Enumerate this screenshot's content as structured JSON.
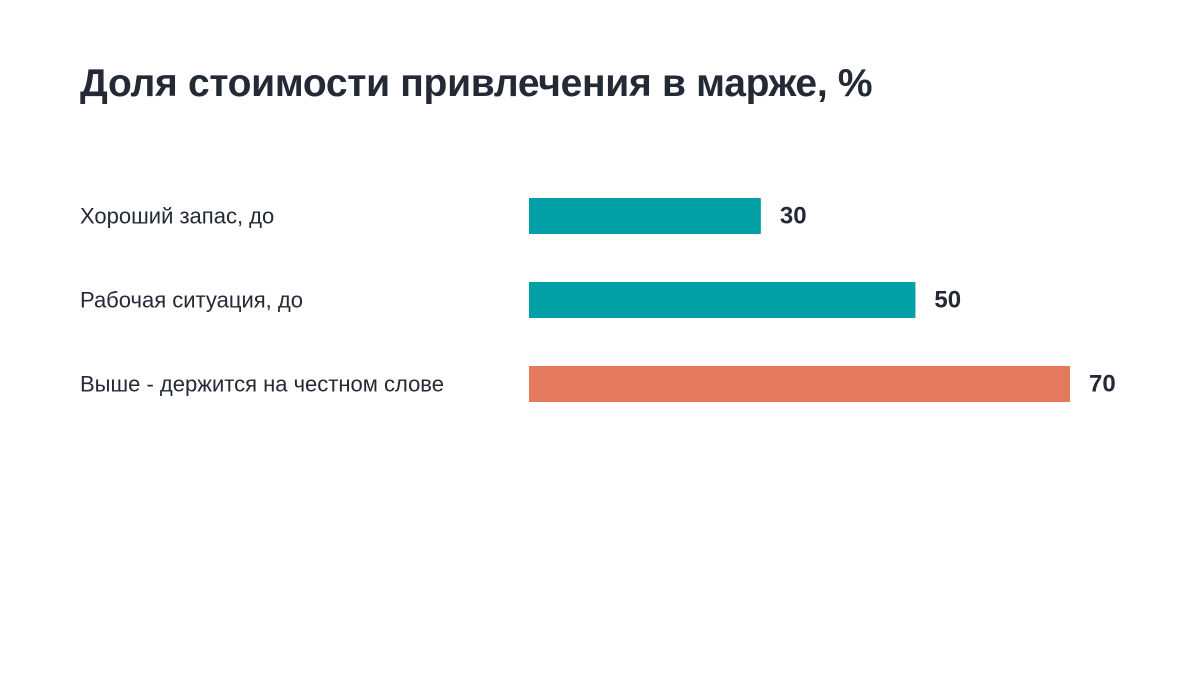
{
  "chart_data": {
    "type": "bar",
    "orientation": "horizontal",
    "title": "Доля стоимости привлечения в марже, %",
    "xlabel": "",
    "ylabel": "",
    "categories": [
      "Хороший запас, до",
      "Рабочая ситуация, до",
      "Выше - держится на честном слове"
    ],
    "values": [
      30,
      50,
      70
    ],
    "bar_colors": [
      "#00a0a6",
      "#00a0a6",
      "#e37a5e"
    ],
    "xlim": [
      0,
      70
    ],
    "grid": false,
    "legend": "none"
  }
}
